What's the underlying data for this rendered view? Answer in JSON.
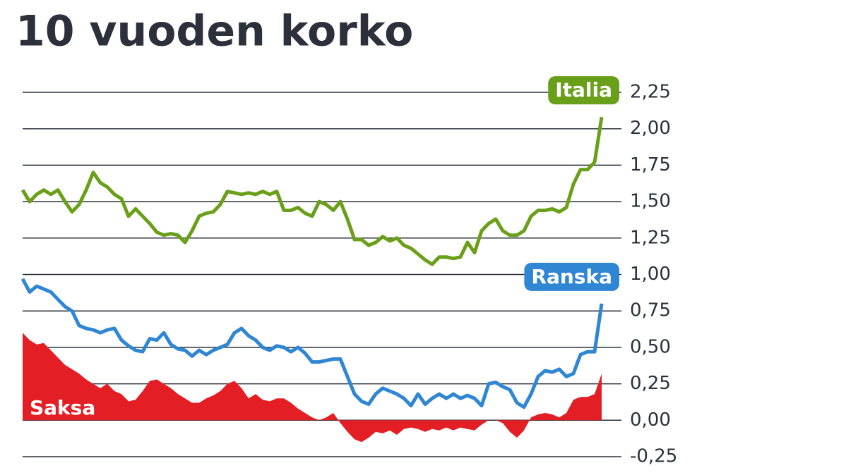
{
  "chart_data": {
    "type": "line",
    "title": "10 vuoden korko",
    "ylim": [
      -0.25,
      2.25
    ],
    "yticks": [
      {
        "value": -0.25,
        "label": "-0,25"
      },
      {
        "value": 0,
        "label": "0,00"
      },
      {
        "value": 0.25,
        "label": "0,25"
      },
      {
        "value": 0.5,
        "label": "0,50"
      },
      {
        "value": 0.75,
        "label": "0,75"
      },
      {
        "value": 1,
        "label": "1,00"
      },
      {
        "value": 1.25,
        "label": "1,25"
      },
      {
        "value": 1.5,
        "label": "1,50"
      },
      {
        "value": 1.75,
        "label": "1,75"
      },
      {
        "value": 2,
        "label": "2,00"
      },
      {
        "value": 2.25,
        "label": "2,25"
      }
    ],
    "grid": true,
    "series": [
      {
        "name": "Saksa",
        "color": "#e31e25",
        "fill": true,
        "values": [
          0.6,
          0.55,
          0.52,
          0.53,
          0.48,
          0.43,
          0.38,
          0.35,
          0.32,
          0.28,
          0.25,
          0.22,
          0.25,
          0.2,
          0.18,
          0.13,
          0.14,
          0.2,
          0.27,
          0.28,
          0.25,
          0.22,
          0.18,
          0.15,
          0.12,
          0.12,
          0.15,
          0.17,
          0.2,
          0.25,
          0.27,
          0.22,
          0.15,
          0.18,
          0.14,
          0.13,
          0.15,
          0.15,
          0.12,
          0.08,
          0.05,
          0.02,
          0.0,
          0.02,
          0.05,
          -0.02,
          -0.08,
          -0.13,
          -0.15,
          -0.12,
          -0.08,
          -0.09,
          -0.07,
          -0.1,
          -0.06,
          -0.05,
          -0.06,
          -0.08,
          -0.06,
          -0.07,
          -0.05,
          -0.07,
          -0.05,
          -0.06,
          -0.07,
          -0.03,
          0.0,
          0.0,
          -0.02,
          -0.08,
          -0.12,
          -0.07,
          0.02,
          0.04,
          0.05,
          0.04,
          0.02,
          0.05,
          0.14,
          0.16,
          0.16,
          0.18,
          0.32
        ]
      },
      {
        "name": "Ranska",
        "color": "#2f86d3",
        "values": [
          0.97,
          0.88,
          0.92,
          0.9,
          0.88,
          0.83,
          0.78,
          0.75,
          0.65,
          0.63,
          0.62,
          0.6,
          0.62,
          0.63,
          0.55,
          0.51,
          0.48,
          0.47,
          0.56,
          0.55,
          0.6,
          0.52,
          0.49,
          0.48,
          0.44,
          0.48,
          0.45,
          0.48,
          0.5,
          0.52,
          0.6,
          0.63,
          0.58,
          0.55,
          0.5,
          0.48,
          0.51,
          0.5,
          0.47,
          0.5,
          0.46,
          0.4,
          0.4,
          0.41,
          0.42,
          0.42,
          0.3,
          0.18,
          0.13,
          0.11,
          0.18,
          0.22,
          0.2,
          0.18,
          0.15,
          0.1,
          0.18,
          0.11,
          0.15,
          0.18,
          0.15,
          0.18,
          0.15,
          0.17,
          0.15,
          0.1,
          0.25,
          0.26,
          0.23,
          0.21,
          0.12,
          0.09,
          0.18,
          0.3,
          0.34,
          0.33,
          0.35,
          0.3,
          0.32,
          0.45,
          0.47,
          0.47,
          0.8
        ]
      },
      {
        "name": "Italia",
        "color": "#6a9f19",
        "values": [
          1.58,
          1.5,
          1.55,
          1.58,
          1.55,
          1.58,
          1.5,
          1.43,
          1.48,
          1.58,
          1.7,
          1.63,
          1.6,
          1.55,
          1.52,
          1.4,
          1.45,
          1.4,
          1.35,
          1.29,
          1.27,
          1.28,
          1.27,
          1.22,
          1.3,
          1.4,
          1.42,
          1.43,
          1.48,
          1.57,
          1.56,
          1.55,
          1.56,
          1.55,
          1.57,
          1.55,
          1.57,
          1.44,
          1.44,
          1.46,
          1.42,
          1.4,
          1.5,
          1.48,
          1.44,
          1.5,
          1.38,
          1.24,
          1.24,
          1.2,
          1.22,
          1.26,
          1.23,
          1.25,
          1.2,
          1.18,
          1.14,
          1.1,
          1.07,
          1.12,
          1.12,
          1.11,
          1.12,
          1.22,
          1.15,
          1.3,
          1.35,
          1.38,
          1.3,
          1.27,
          1.27,
          1.3,
          1.4,
          1.44,
          1.44,
          1.45,
          1.43,
          1.46,
          1.62,
          1.72,
          1.72,
          1.77,
          2.08
        ]
      }
    ]
  }
}
